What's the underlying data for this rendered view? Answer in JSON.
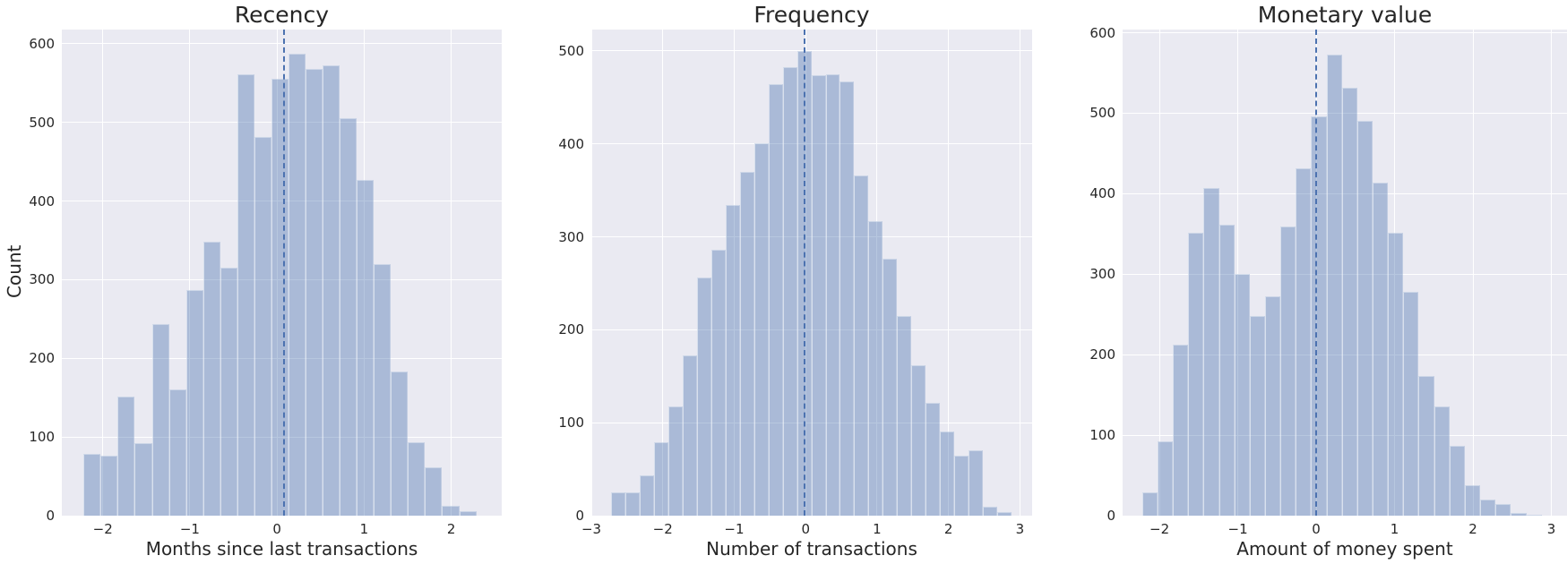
{
  "chart_data": [
    {
      "type": "bar",
      "subtype": "histogram",
      "title": "Recency",
      "xlabel": "Months since last transactions",
      "ylabel": "Count",
      "xlim": [
        -2.47,
        2.58
      ],
      "ylim": [
        0,
        618
      ],
      "xticks": [
        -2,
        -1,
        0,
        1,
        2
      ],
      "xtick_labels": [
        "−2",
        "−1",
        "0",
        "1",
        "2"
      ],
      "yticks": [
        0,
        100,
        200,
        300,
        400,
        500,
        600
      ],
      "bin_start": -2.22,
      "bin_width": 0.196,
      "values": [
        79,
        76,
        151,
        92,
        244,
        161,
        287,
        348,
        315,
        561,
        482,
        555,
        587,
        568,
        572,
        505,
        427,
        320,
        183,
        93,
        62,
        13,
        6
      ],
      "mean_line_x": 0.08,
      "grid": true,
      "color": "#4c72b0",
      "bar_alpha": 0.4
    },
    {
      "type": "bar",
      "subtype": "histogram",
      "title": "Frequency",
      "xlabel": "Number of transactions",
      "ylabel": "",
      "xlim": [
        -3.0,
        3.17
      ],
      "ylim": [
        0,
        523
      ],
      "xticks": [
        -3,
        -2,
        -1,
        0,
        1,
        2,
        3
      ],
      "xtick_labels": [
        "−3",
        "−2",
        "−1",
        "0",
        "1",
        "2",
        "3"
      ],
      "yticks": [
        0,
        100,
        200,
        300,
        400,
        500
      ],
      "bin_start": -2.72,
      "bin_width": 0.2,
      "values": [
        25,
        25,
        43,
        79,
        118,
        172,
        256,
        286,
        334,
        370,
        401,
        464,
        483,
        500,
        474,
        475,
        467,
        366,
        317,
        276,
        215,
        162,
        121,
        91,
        65,
        70,
        10,
        4
      ],
      "mean_line_x": -0.02,
      "grid": true,
      "color": "#4c72b0",
      "bar_alpha": 0.4
    },
    {
      "type": "bar",
      "subtype": "histogram",
      "title": "Monetary value",
      "xlabel": "Amount of money spent",
      "ylabel": "",
      "xlim": [
        -2.47,
        3.2
      ],
      "ylim": [
        0,
        604
      ],
      "xticks": [
        -2,
        -1,
        0,
        1,
        2,
        3
      ],
      "xtick_labels": [
        "−2",
        "−1",
        "0",
        "1",
        "2",
        "3"
      ],
      "yticks": [
        0,
        100,
        200,
        300,
        400,
        500,
        600
      ],
      "bin_start": -2.22,
      "bin_width": 0.196,
      "values": [
        29,
        92,
        212,
        351,
        407,
        362,
        300,
        248,
        273,
        359,
        432,
        496,
        573,
        532,
        491,
        414,
        351,
        278,
        174,
        136,
        87,
        38,
        20,
        15,
        3,
        1
      ],
      "mean_line_x": 0.0,
      "grid": true,
      "color": "#4c72b0",
      "bar_alpha": 0.4
    }
  ],
  "panels": [
    {
      "title": "Recency",
      "xlabel": "Months since last transactions",
      "ylabel": "Count"
    },
    {
      "title": "Frequency",
      "xlabel": "Number of transactions",
      "ylabel": ""
    },
    {
      "title": "Monetary value",
      "xlabel": "Amount of money spent",
      "ylabel": ""
    }
  ]
}
